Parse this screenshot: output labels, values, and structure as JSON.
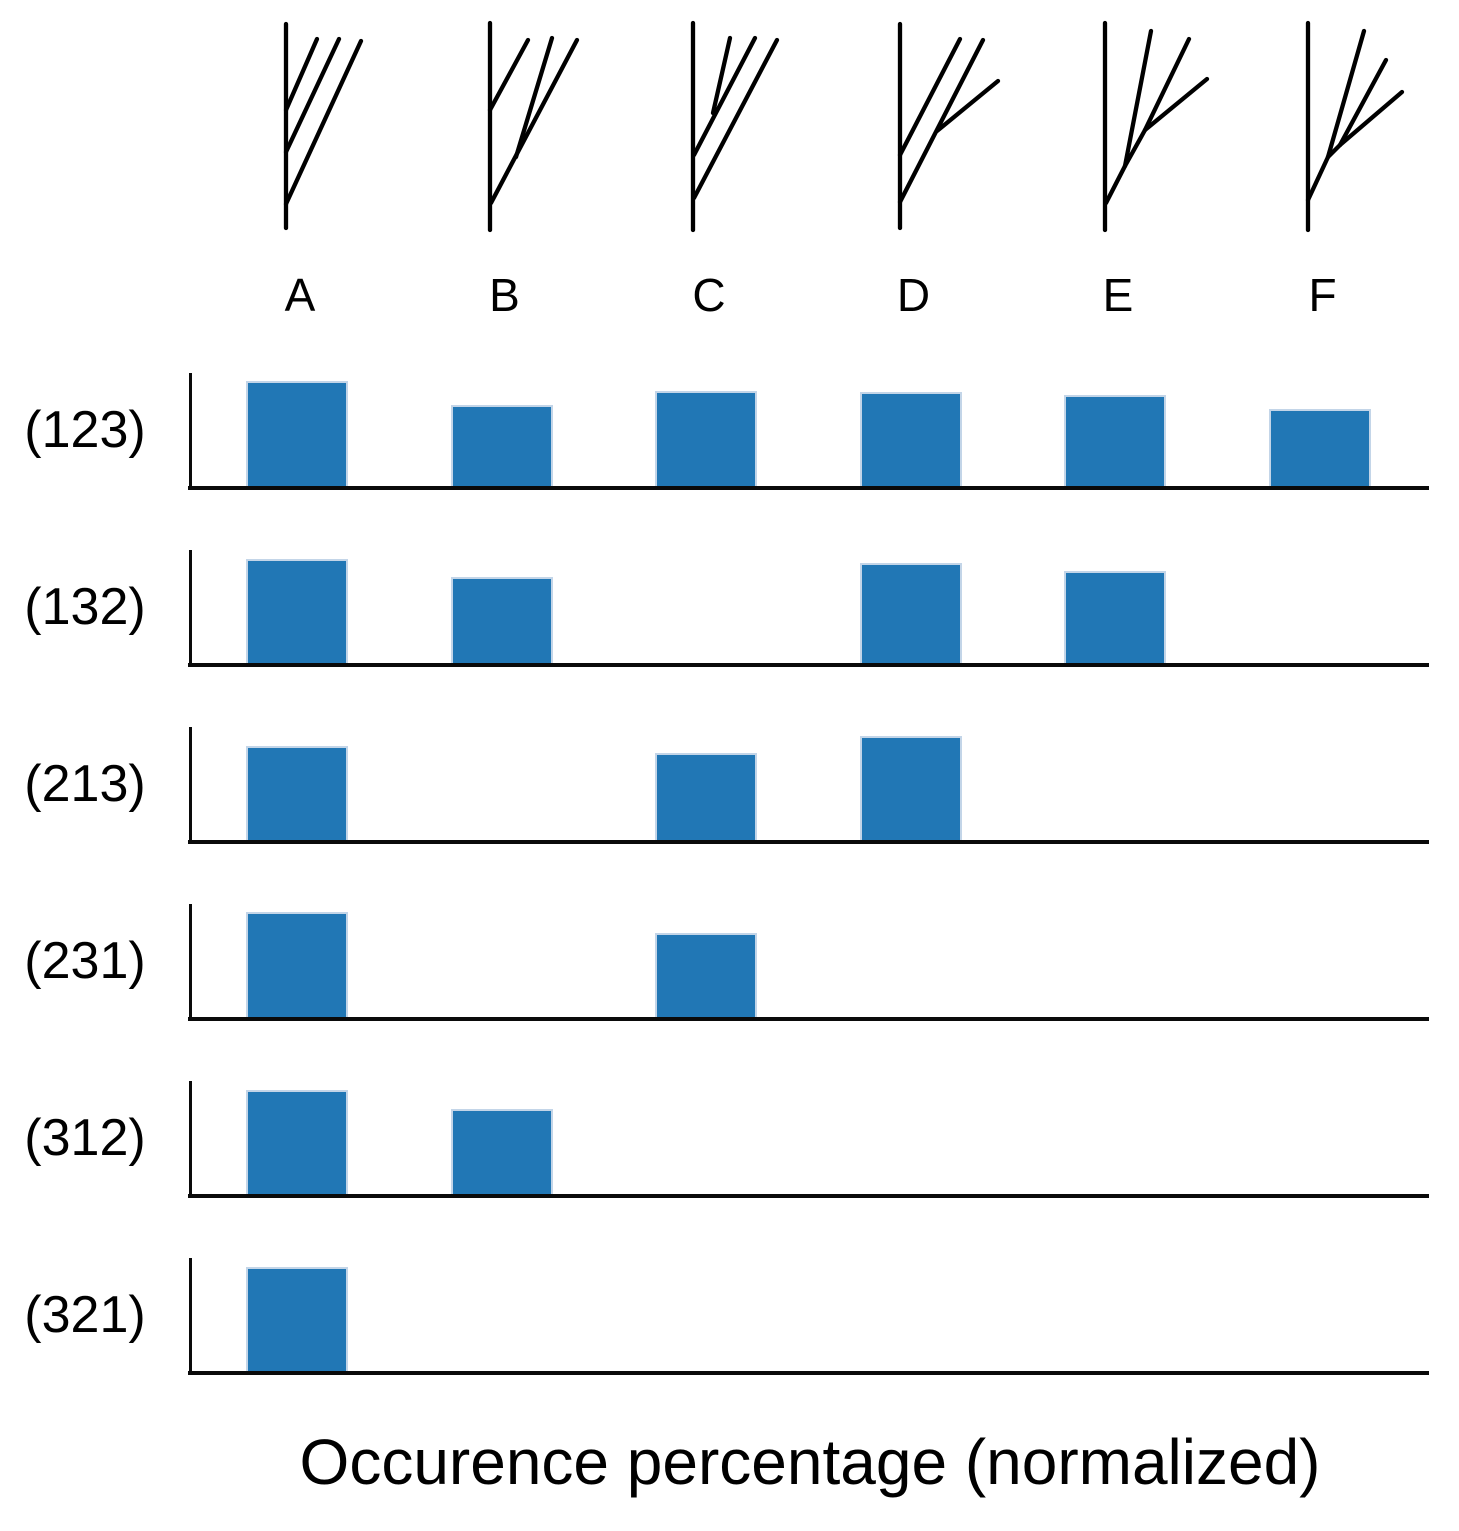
{
  "figure": {
    "caption": "Occurence percentage (normalized)"
  },
  "colors": {
    "bar_fill": "#2177b5",
    "bar_edge": "#c3d5e8",
    "axis": "#0a0a0a",
    "tree_stroke": "#000000",
    "text": "#000000",
    "background": "#ffffff"
  },
  "trees": [
    {
      "label": "A",
      "segments": [
        [
          286,
          24,
          286,
          228
        ],
        [
          286,
          110,
          317,
          39
        ],
        [
          286,
          152,
          339,
          39
        ],
        [
          286,
          204,
          361,
          41
        ]
      ]
    },
    {
      "label": "B",
      "segments": [
        [
          490,
          23,
          490,
          230
        ],
        [
          490,
          110,
          528,
          40
        ],
        [
          491,
          203,
          577,
          40
        ],
        [
          516,
          157,
          552,
          38
        ]
      ]
    },
    {
      "label": "C",
      "segments": [
        [
          693,
          23,
          693,
          230
        ],
        [
          694,
          155,
          755,
          38
        ],
        [
          713,
          113,
          730,
          38
        ],
        [
          694,
          198,
          777,
          40
        ]
      ]
    },
    {
      "label": "D",
      "segments": [
        [
          900,
          24,
          900,
          228
        ],
        [
          900,
          155,
          960,
          39
        ],
        [
          900,
          202,
          983,
          40
        ],
        [
          937,
          131,
          998,
          81
        ]
      ]
    },
    {
      "label": "E",
      "segments": [
        [
          1105,
          23,
          1105,
          230
        ],
        [
          1106,
          203,
          1125,
          166
        ],
        [
          1125,
          166,
          1151,
          31
        ],
        [
          1125,
          166,
          1145,
          130
        ],
        [
          1145,
          130,
          1189,
          39
        ],
        [
          1145,
          130,
          1207,
          79
        ]
      ]
    },
    {
      "label": "F",
      "segments": [
        [
          1308,
          23,
          1308,
          230
        ],
        [
          1308,
          200,
          1328,
          157
        ],
        [
          1328,
          157,
          1364,
          31
        ],
        [
          1328,
          157,
          1340,
          145
        ],
        [
          1340,
          145,
          1386,
          60
        ],
        [
          1340,
          145,
          1402,
          92
        ]
      ]
    }
  ],
  "chart_data": {
    "type": "bar",
    "title": "Occurence percentage (normalized)",
    "categories": [
      "A",
      "B",
      "C",
      "D",
      "E",
      "F"
    ],
    "rows": [
      {
        "label": "(123)",
        "values": [
          0.94,
          0.72,
          0.85,
          0.84,
          0.81,
          0.69
        ]
      },
      {
        "label": "(132)",
        "values": [
          0.93,
          0.77,
          0,
          0.89,
          0.82,
          0
        ]
      },
      {
        "label": "(213)",
        "values": [
          0.84,
          0,
          0.78,
          0.93,
          0,
          0
        ]
      },
      {
        "label": "(231)",
        "values": [
          0.94,
          0,
          0.75,
          0,
          0,
          0
        ]
      },
      {
        "label": "(312)",
        "values": [
          0.93,
          0.76,
          0,
          0,
          0,
          0
        ]
      },
      {
        "label": "(321)",
        "values": [
          0.93,
          0,
          0,
          0,
          0,
          0
        ]
      }
    ],
    "ylim": [
      0,
      1
    ],
    "grid": false,
    "legend": null,
    "value_unit": "fraction of full axis height (no tick labels shown)"
  }
}
